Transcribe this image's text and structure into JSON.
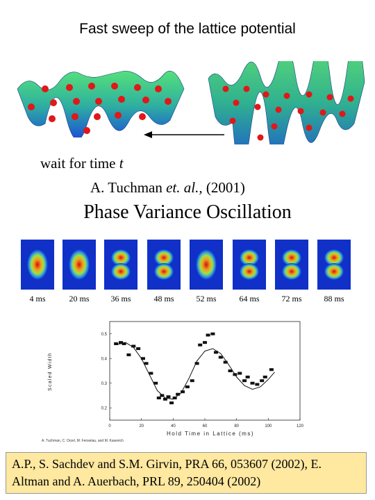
{
  "header": {
    "title": "Fast sweep of the lattice potential"
  },
  "lattice": {
    "wait_text": "wait for time ",
    "wait_var": "t"
  },
  "experiment": {
    "citation_author": "A. Tuchman ",
    "citation_etal": "et. al., ",
    "citation_year": "(2001)",
    "title": "Phase Variance Oscillation"
  },
  "snapshots": [
    {
      "label": "4 ms",
      "lobes": 1
    },
    {
      "label": "20 ms",
      "lobes": 1
    },
    {
      "label": "36 ms",
      "lobes": 2
    },
    {
      "label": "48 ms",
      "lobes": 2
    },
    {
      "label": "52 ms",
      "lobes": 1
    },
    {
      "label": "64 ms",
      "lobes": 2
    },
    {
      "label": "72 ms",
      "lobes": 2
    },
    {
      "label": "88 ms",
      "lobes": 2
    }
  ],
  "chart_data": {
    "type": "scatter",
    "xlabel": "Hold Time in Lattice (ms)",
    "ylabel": "Scaled Width",
    "xlim": [
      0,
      120
    ],
    "ylim": [
      0.15,
      0.55
    ],
    "xticks": [
      "0",
      "20",
      "40",
      "60",
      "80",
      "100",
      "120"
    ],
    "yticks": [
      "0.2",
      "0.3",
      "0.4",
      "0.5"
    ],
    "points": [
      {
        "x": 4,
        "y": 0.46
      },
      {
        "x": 7,
        "y": 0.465
      },
      {
        "x": 9,
        "y": 0.46
      },
      {
        "x": 12,
        "y": 0.415
      },
      {
        "x": 15,
        "y": 0.45
      },
      {
        "x": 18,
        "y": 0.44
      },
      {
        "x": 21,
        "y": 0.4
      },
      {
        "x": 23,
        "y": 0.38
      },
      {
        "x": 26,
        "y": 0.34
      },
      {
        "x": 29,
        "y": 0.3
      },
      {
        "x": 31,
        "y": 0.24
      },
      {
        "x": 33,
        "y": 0.25
      },
      {
        "x": 35,
        "y": 0.235
      },
      {
        "x": 37,
        "y": 0.245
      },
      {
        "x": 39,
        "y": 0.22
      },
      {
        "x": 41,
        "y": 0.24
      },
      {
        "x": 43,
        "y": 0.255
      },
      {
        "x": 46,
        "y": 0.265
      },
      {
        "x": 49,
        "y": 0.285
      },
      {
        "x": 52,
        "y": 0.31
      },
      {
        "x": 55,
        "y": 0.38
      },
      {
        "x": 57,
        "y": 0.455
      },
      {
        "x": 60,
        "y": 0.465
      },
      {
        "x": 62,
        "y": 0.495
      },
      {
        "x": 65,
        "y": 0.5
      },
      {
        "x": 67,
        "y": 0.425
      },
      {
        "x": 70,
        "y": 0.405
      },
      {
        "x": 73,
        "y": 0.385
      },
      {
        "x": 76,
        "y": 0.35
      },
      {
        "x": 79,
        "y": 0.335
      },
      {
        "x": 82,
        "y": 0.34
      },
      {
        "x": 85,
        "y": 0.31
      },
      {
        "x": 87,
        "y": 0.325
      },
      {
        "x": 90,
        "y": 0.3
      },
      {
        "x": 93,
        "y": 0.295
      },
      {
        "x": 96,
        "y": 0.31
      },
      {
        "x": 98,
        "y": 0.325
      },
      {
        "x": 102,
        "y": 0.355
      }
    ],
    "fit_curve": [
      {
        "x": 4,
        "y": 0.455
      },
      {
        "x": 10,
        "y": 0.465
      },
      {
        "x": 15,
        "y": 0.445
      },
      {
        "x": 20,
        "y": 0.4
      },
      {
        "x": 25,
        "y": 0.335
      },
      {
        "x": 30,
        "y": 0.27
      },
      {
        "x": 35,
        "y": 0.24
      },
      {
        "x": 40,
        "y": 0.235
      },
      {
        "x": 45,
        "y": 0.26
      },
      {
        "x": 50,
        "y": 0.32
      },
      {
        "x": 55,
        "y": 0.39
      },
      {
        "x": 60,
        "y": 0.43
      },
      {
        "x": 65,
        "y": 0.44
      },
      {
        "x": 70,
        "y": 0.42
      },
      {
        "x": 75,
        "y": 0.375
      },
      {
        "x": 80,
        "y": 0.325
      },
      {
        "x": 85,
        "y": 0.29
      },
      {
        "x": 90,
        "y": 0.275
      },
      {
        "x": 95,
        "y": 0.285
      },
      {
        "x": 100,
        "y": 0.315
      },
      {
        "x": 104,
        "y": 0.345
      }
    ]
  },
  "plot_credits": "A. Tuchman, C. Orzel, M. Fenselau, and M. Kasevich",
  "references": {
    "line1": "A.P., S. Sachdev and S.M. Girvin, PRA 66, 053607 (2002), E.",
    "line2": "Altman and A. Auerbach, PRL 89, 250404 (2002)"
  },
  "colors": {
    "lattice_blue": "#1a4fd6",
    "lattice_green": "#3cc870",
    "atom_red": "#e01818",
    "ref_box": "#ffe8a0"
  }
}
